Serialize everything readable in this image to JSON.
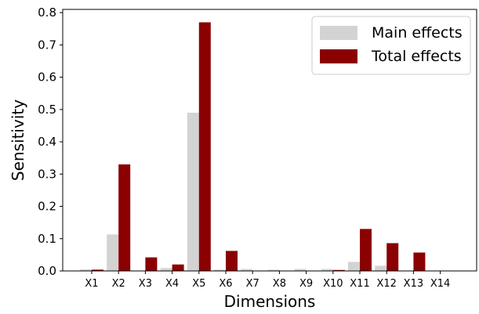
{
  "chart_data": {
    "type": "bar",
    "title": "",
    "xlabel": "Dimensions",
    "ylabel": "Sensitivity",
    "categories": [
      "X1",
      "X2",
      "X3",
      "X4",
      "X5",
      "X6",
      "X7",
      "X8",
      "X9",
      "X10",
      "X11",
      "X12",
      "X13",
      "X14"
    ],
    "series": [
      {
        "name": "Main effects",
        "color": "#d3d3d3",
        "values": [
          0.005,
          0.113,
          0.001,
          0.009,
          0.49,
          0.004,
          0.006,
          0.004,
          0.006,
          0.006,
          0.028,
          0.016,
          0.001,
          0.0
        ]
      },
      {
        "name": "Total effects",
        "color": "#8b0000",
        "values": [
          0.004,
          0.33,
          0.042,
          0.02,
          0.77,
          0.062,
          0.0,
          0.0,
          0.0,
          0.003,
          0.13,
          0.086,
          0.057,
          0.0
        ]
      }
    ],
    "ylim": [
      0,
      0.81
    ],
    "yticks": [
      "0.0",
      "0.1",
      "0.2",
      "0.3",
      "0.4",
      "0.5",
      "0.6",
      "0.7",
      "0.8"
    ],
    "legend_position": "top-right",
    "grid": false
  }
}
